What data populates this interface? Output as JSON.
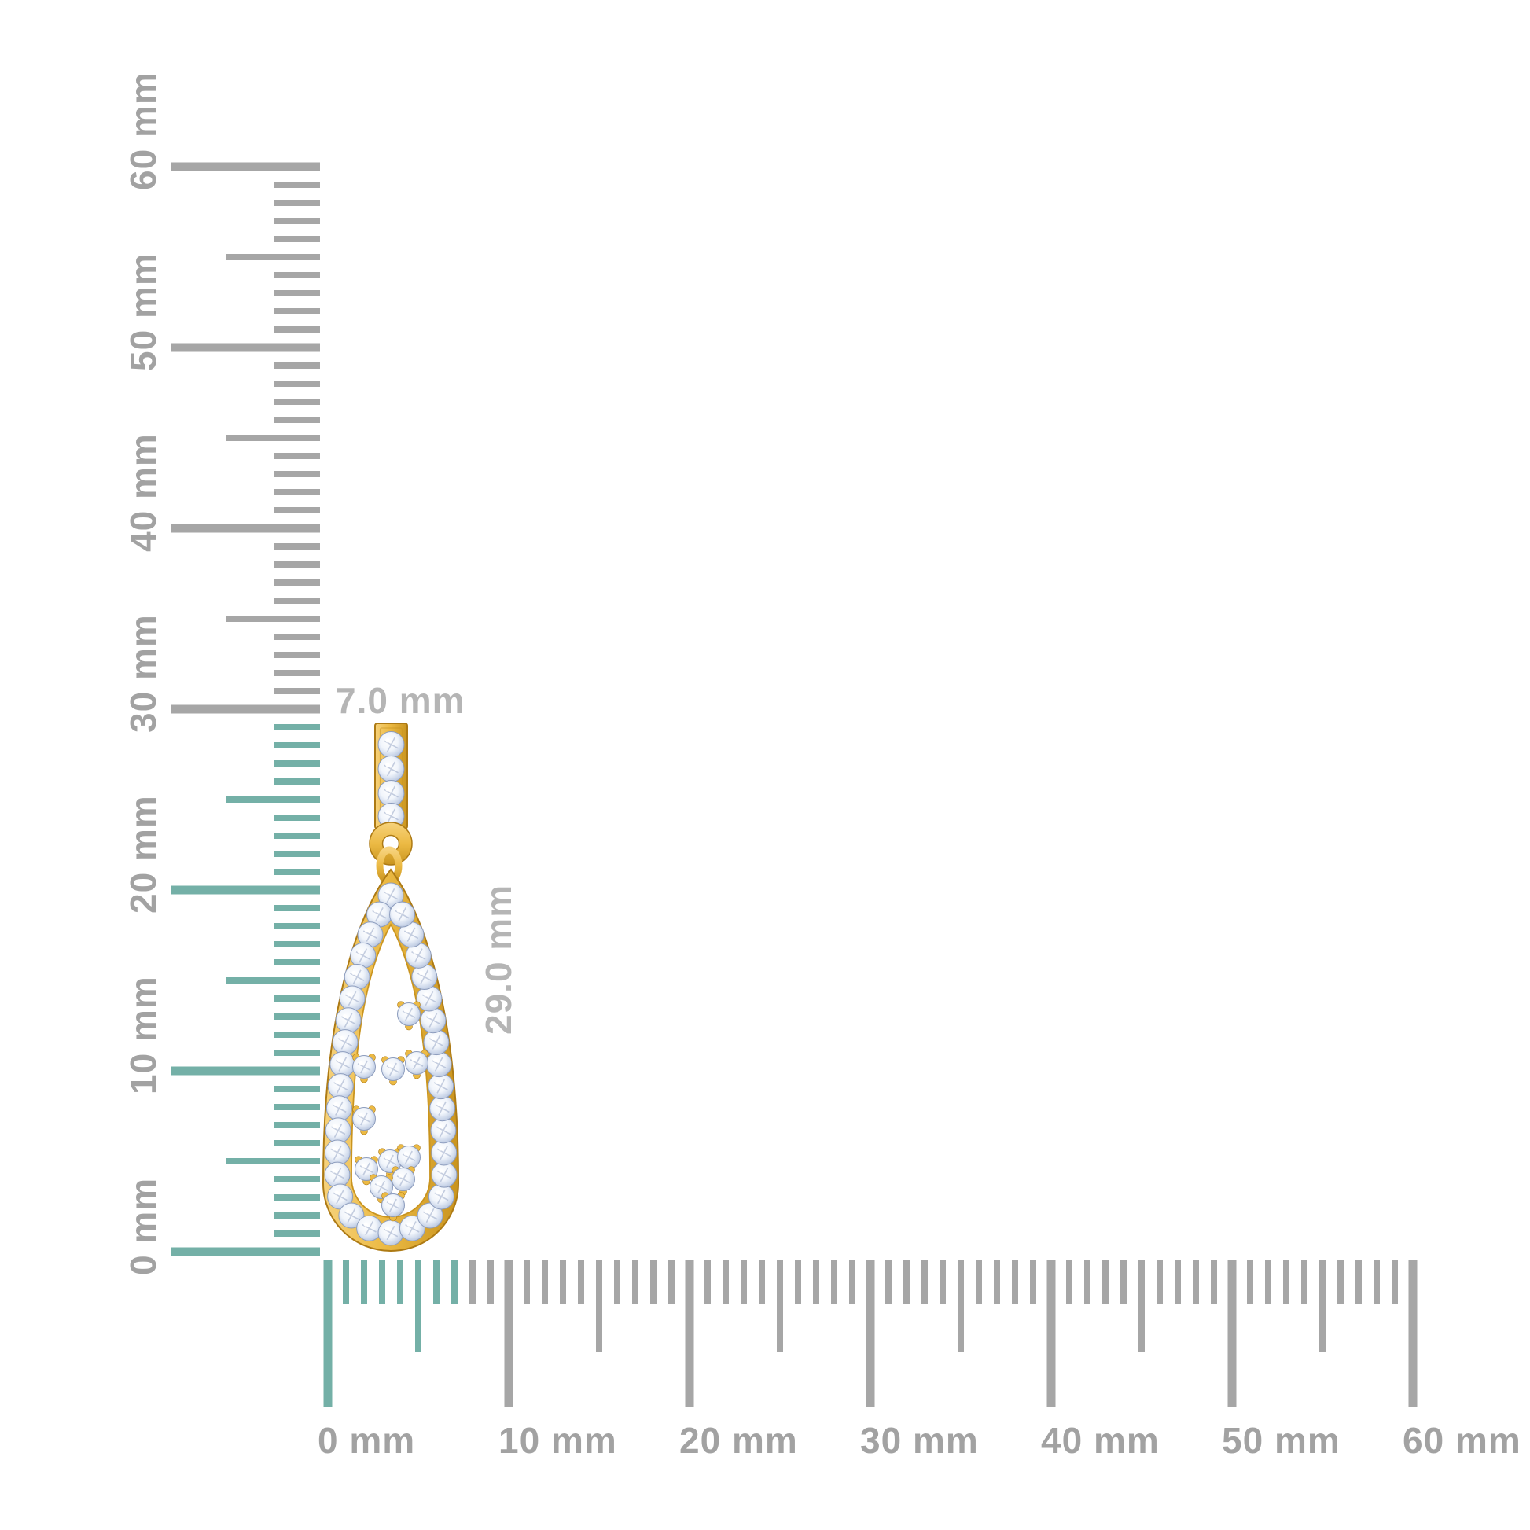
{
  "annotations": {
    "width_label": "7.0 mm",
    "height_label": "29.0 mm"
  },
  "object": {
    "name": "diamond teardrop drop earring, yellow gold with round diamonds",
    "width_mm": 7.0,
    "height_mm": 29.0
  },
  "rulers": {
    "unit": "mm",
    "vertical": {
      "min_mm": 0,
      "max_mm": 60,
      "major_step_mm": 10,
      "medium_step_mm": 5,
      "minor_step_mm": 1,
      "highlighted_range_mm": [
        0,
        29
      ],
      "labels": [
        "0 mm",
        "10 mm",
        "20 mm",
        "30 mm",
        "40 mm",
        "50 mm",
        "60 mm"
      ]
    },
    "horizontal": {
      "min_mm": 0,
      "max_mm": 60,
      "major_step_mm": 10,
      "medium_step_mm": 5,
      "minor_step_mm": 1,
      "highlighted_range_mm": [
        0,
        7
      ],
      "labels": [
        "0 mm",
        "10 mm",
        "20 mm",
        "30 mm",
        "40 mm",
        "50 mm",
        "60 mm"
      ]
    }
  },
  "colors": {
    "background": "#ffffff",
    "highlight_teal": "#74b0a7",
    "tick_gray": "#a6a6a6",
    "label_gray": "#a2a2a2",
    "annotation_gray": "#b5b5b5",
    "gold_light": "#f6d27c",
    "gold_mid": "#ecba44",
    "gold_dark": "#c9941f",
    "gold_outline": "#ad7a14",
    "diamond_white": "#ffffff",
    "diamond_light": "#f1f5fb",
    "diamond_mid": "#ccd7ea",
    "diamond_dark": "#a6b4d0",
    "diamond_outline": "#8c9cbd"
  }
}
